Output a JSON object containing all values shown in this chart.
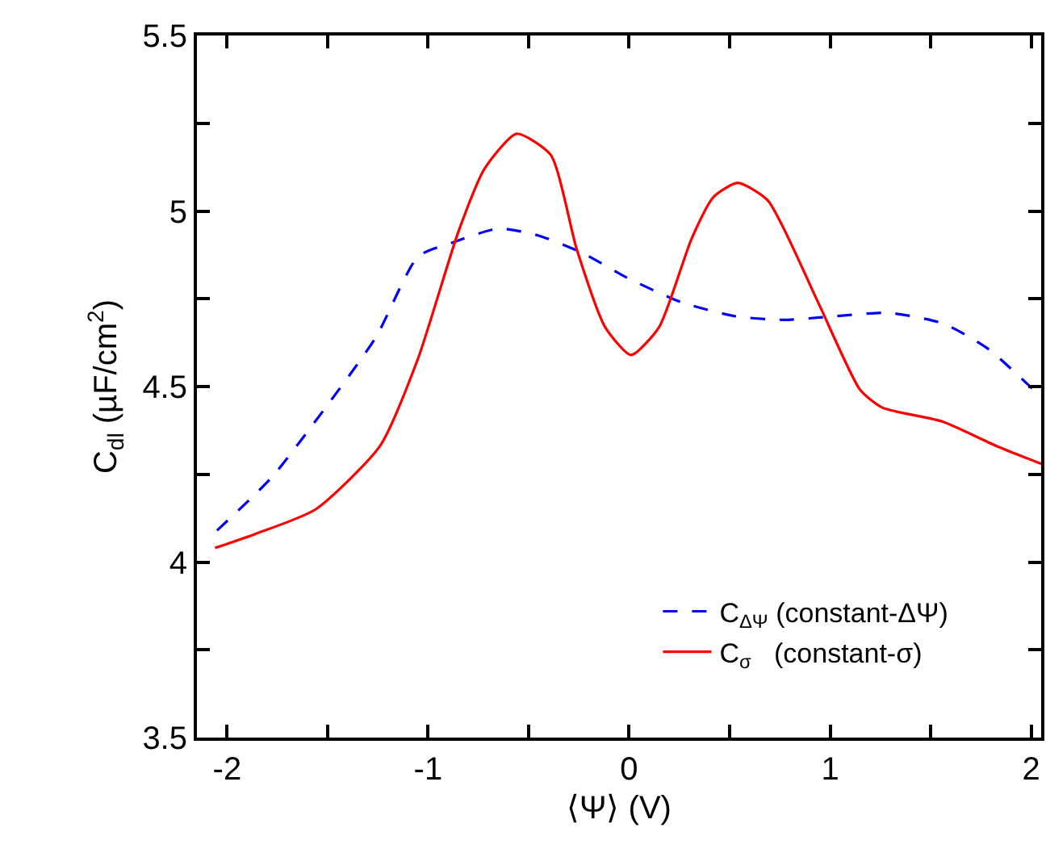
{
  "chart_data": {
    "type": "line",
    "xlabel": "⟨Ψ⟩ (V)",
    "ylabel": "C$_{dl}$ (µF/cm$^{2}$)",
    "xlim": [
      -2.15,
      2.05
    ],
    "ylim": [
      3.5,
      5.5
    ],
    "xticks": [
      -2,
      {
        "value": -1.5,
        "label": null
      },
      -1,
      {
        "value": -0.5,
        "label": null
      },
      0,
      {
        "value": 0.5,
        "label": null
      },
      1,
      {
        "value": 1.5,
        "label": null
      },
      2
    ],
    "yticks": [
      3.5,
      {
        "value": 3.75,
        "label": null
      },
      4,
      {
        "value": 4.25,
        "label": null
      },
      4.5,
      {
        "value": 4.75,
        "label": null
      },
      5,
      {
        "value": 5.25,
        "label": null
      },
      5.5
    ],
    "grid": false,
    "legend": "bottom right",
    "marker": "none",
    "series": [
      {
        "name": "C$_{ΔΨ}$ (constant-ΔΨ)",
        "color": "#0000ff",
        "line_style": "dashed",
        "x": [
          -2.05,
          -1.78,
          -1.51,
          -1.26,
          -1.05,
          -0.88,
          -0.65,
          -0.45,
          -0.23,
          -0.01,
          0.26,
          0.53,
          0.77,
          1.02,
          1.29,
          1.56,
          1.78,
          2.05
        ],
        "values": [
          4.09,
          4.24,
          4.44,
          4.64,
          4.87,
          4.91,
          4.95,
          4.93,
          4.88,
          4.81,
          4.74,
          4.7,
          4.69,
          4.7,
          4.71,
          4.68,
          4.61,
          4.47
        ]
      },
      {
        "name": "C$_{σ}$   (constant-σ)",
        "color": "#ff0000",
        "line_style": "solid",
        "x": [
          -2.06,
          -1.86,
          -1.56,
          -1.24,
          -1.05,
          -0.85,
          -0.72,
          -0.56,
          -0.39,
          -0.26,
          -0.12,
          0.01,
          0.15,
          0.31,
          0.42,
          0.54,
          0.69,
          0.94,
          1.15,
          1.26,
          1.56,
          1.83,
          2.05
        ],
        "values": [
          4.04,
          4.08,
          4.15,
          4.33,
          4.58,
          4.94,
          5.12,
          5.22,
          5.16,
          4.89,
          4.67,
          4.59,
          4.67,
          4.92,
          5.04,
          5.08,
          5.03,
          4.74,
          4.49,
          4.44,
          4.4,
          4.33,
          4.28
        ]
      }
    ]
  }
}
